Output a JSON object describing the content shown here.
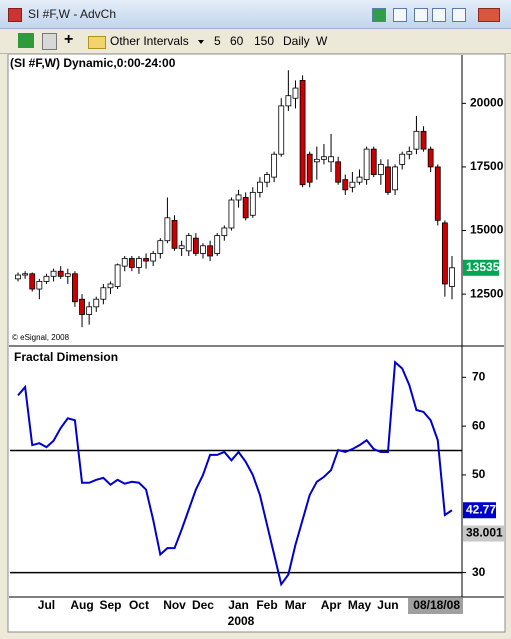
{
  "window": {
    "title": "SI #F,W - AdvCh",
    "toolbar": [
      "Other Intervals",
      "5",
      "60",
      "150",
      "Daily",
      "W"
    ]
  },
  "chart_data": [
    {
      "type": "candlestick",
      "title": "(SI #F,W) Dynamic,0:00-24:00",
      "annotation": "© eSignal, 2008",
      "categories": [
        null,
        null,
        null,
        null,
        "Jul",
        null,
        null,
        null,
        null,
        "Aug",
        null,
        null,
        null,
        "Sep",
        null,
        null,
        null,
        "Oct",
        null,
        null,
        null,
        null,
        "Nov",
        null,
        null,
        null,
        "Dec",
        null,
        null,
        null,
        null,
        "Jan",
        null,
        null,
        null,
        "Feb",
        null,
        null,
        null,
        "Mar",
        null,
        null,
        null,
        null,
        "Apr",
        null,
        null,
        null,
        "May",
        null,
        null,
        null,
        "Jun",
        null,
        null,
        null,
        null,
        null,
        null,
        null,
        null,
        "08/18/08"
      ],
      "year_label": "2008",
      "open": [
        13100,
        13250,
        13300,
        12700,
        13000,
        13200,
        13400,
        13200,
        13300,
        12300,
        11700,
        12000,
        12300,
        12750,
        12800,
        13600,
        13900,
        13550,
        13900,
        13800,
        14100,
        14600,
        15400,
        14300,
        14200,
        14700,
        14100,
        14400,
        14100,
        14800,
        15100,
        16200,
        16300,
        15600,
        16500,
        16900,
        17100,
        18000,
        19900,
        20200,
        20900,
        18000,
        17700,
        17800,
        17700,
        17700,
        17000,
        16700,
        16900,
        17000,
        18200,
        17200,
        17500,
        16600,
        17600,
        18000,
        18200,
        18900,
        18200,
        17500,
        15300,
        12800
      ],
      "high": [
        13350,
        13400,
        13350,
        13100,
        13300,
        13500,
        13600,
        13500,
        13400,
        12500,
        12200,
        12400,
        12900,
        13000,
        13700,
        14000,
        14000,
        14000,
        14100,
        14200,
        14700,
        16300,
        15600,
        14600,
        14900,
        14900,
        14500,
        14600,
        14900,
        15200,
        16300,
        16600,
        16500,
        16700,
        17100,
        17300,
        18100,
        20200,
        21300,
        20900,
        21100,
        18100,
        18300,
        18400,
        18800,
        17900,
        17200,
        17300,
        17400,
        18300,
        18300,
        17800,
        17800,
        17600,
        18100,
        18300,
        19500,
        19100,
        18300,
        17600,
        15400,
        14000
      ],
      "low": [
        13000,
        13100,
        12600,
        12300,
        12900,
        13000,
        13100,
        12900,
        12000,
        11200,
        11300,
        11800,
        12100,
        12500,
        12700,
        13400,
        13400,
        13300,
        13500,
        13600,
        13900,
        14500,
        14200,
        14000,
        14000,
        14000,
        13900,
        13800,
        14000,
        14600,
        15000,
        15900,
        15400,
        15500,
        16300,
        16700,
        16900,
        17900,
        19700,
        19800,
        16700,
        16700,
        17000,
        17600,
        17300,
        16800,
        16400,
        16500,
        16800,
        16800,
        17100,
        16800,
        16400,
        16400,
        17400,
        17800,
        18000,
        18100,
        17300,
        15200,
        12400,
        12300
      ],
      "close": [
        13250,
        13300,
        12700,
        13000,
        13200,
        13400,
        13200,
        13300,
        12200,
        11700,
        12000,
        12300,
        12750,
        12900,
        13650,
        13900,
        13550,
        13900,
        13800,
        14100,
        14600,
        15500,
        14300,
        14400,
        14800,
        14100,
        14400,
        14000,
        14800,
        15100,
        16200,
        16400,
        15500,
        16500,
        16900,
        17200,
        18000,
        19900,
        20300,
        20600,
        16800,
        16900,
        17800,
        17900,
        17900,
        16900,
        16600,
        16900,
        17100,
        18200,
        17200,
        17600,
        16500,
        17500,
        18000,
        18100,
        18900,
        18200,
        17500,
        15400,
        12900,
        13535
      ],
      "up_color": "#ffffff",
      "down_color": "#cc0000",
      "last_color": "#00a651",
      "ylim": [
        10500,
        21900
      ],
      "yticks": [
        12500,
        15000,
        17500,
        20000
      ]
    },
    {
      "type": "line",
      "title": "Fractal Dimension",
      "values": [
        66.3,
        68.0,
        56.1,
        56.5,
        55.7,
        57.0,
        59.6,
        61.6,
        61.2,
        48.4,
        48.4,
        49.0,
        49.4,
        48.0,
        49.0,
        48.2,
        48.6,
        48.4,
        47.0,
        40.8,
        33.7,
        35.0,
        35.0,
        38.8,
        42.9,
        47.0,
        50.0,
        54.1,
        54.1,
        54.7,
        53.0,
        54.7,
        52.7,
        50.0,
        45.9,
        39.8,
        33.7,
        27.6,
        29.6,
        35.7,
        40.8,
        45.9,
        48.6,
        49.6,
        51.0,
        55.1,
        54.7,
        55.3,
        56.1,
        57.1,
        55.3,
        54.7,
        54.7,
        73.1,
        71.8,
        68.4,
        63.3,
        62.9,
        61.2,
        57.1,
        41.8,
        42.77
      ],
      "color": "#0000cc",
      "hlines": [
        55,
        30
      ],
      "reference_value": 38.001,
      "ylim": [
        25,
        76
      ],
      "yticks": [
        30,
        50,
        60,
        70
      ]
    }
  ]
}
